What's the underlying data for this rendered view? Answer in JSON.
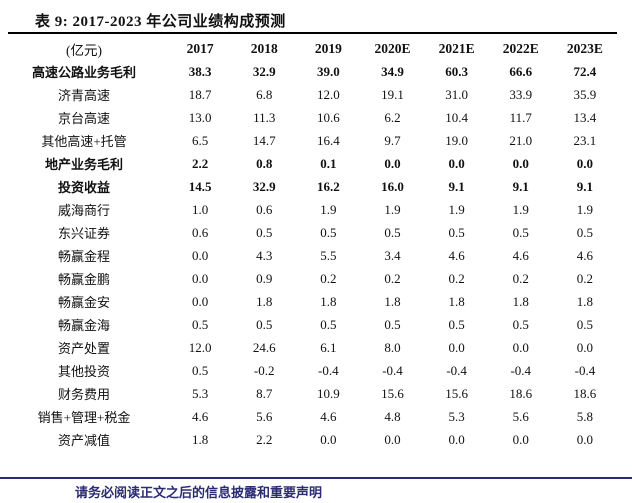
{
  "title": "表 9:  2017-2023 年公司业绩构成预测",
  "colors": {
    "rule_black": "#000000",
    "footer_navy": "#2b2c74",
    "text": "#111111"
  },
  "table": {
    "unit_header": "(亿元)",
    "year_headers": [
      "2017",
      "2018",
      "2019",
      "2020E",
      "2021E",
      "2022E",
      "2023E"
    ],
    "rows": [
      {
        "label": "高速公路业务毛利",
        "bold": true,
        "values": [
          "38.3",
          "32.9",
          "39.0",
          "34.9",
          "60.3",
          "66.6",
          "72.4"
        ]
      },
      {
        "label": "济青高速",
        "bold": false,
        "values": [
          "18.7",
          "6.8",
          "12.0",
          "19.1",
          "31.0",
          "33.9",
          "35.9"
        ]
      },
      {
        "label": "京台高速",
        "bold": false,
        "values": [
          "13.0",
          "11.3",
          "10.6",
          "6.2",
          "10.4",
          "11.7",
          "13.4"
        ]
      },
      {
        "label": "其他高速+托管",
        "bold": false,
        "values": [
          "6.5",
          "14.7",
          "16.4",
          "9.7",
          "19.0",
          "21.0",
          "23.1"
        ]
      },
      {
        "label": "地产业务毛利",
        "bold": true,
        "values": [
          "2.2",
          "0.8",
          "0.1",
          "0.0",
          "0.0",
          "0.0",
          "0.0"
        ]
      },
      {
        "label": "投资收益",
        "bold": true,
        "values": [
          "14.5",
          "32.9",
          "16.2",
          "16.0",
          "9.1",
          "9.1",
          "9.1"
        ]
      },
      {
        "label": "威海商行",
        "bold": false,
        "values": [
          "1.0",
          "0.6",
          "1.9",
          "1.9",
          "1.9",
          "1.9",
          "1.9"
        ]
      },
      {
        "label": "东兴证券",
        "bold": false,
        "values": [
          "0.6",
          "0.5",
          "0.5",
          "0.5",
          "0.5",
          "0.5",
          "0.5"
        ]
      },
      {
        "label": "畅赢金程",
        "bold": false,
        "values": [
          "0.0",
          "4.3",
          "5.5",
          "3.4",
          "4.6",
          "4.6",
          "4.6"
        ]
      },
      {
        "label": "畅赢金鹏",
        "bold": false,
        "values": [
          "0.0",
          "0.9",
          "0.2",
          "0.2",
          "0.2",
          "0.2",
          "0.2"
        ]
      },
      {
        "label": "畅赢金安",
        "bold": false,
        "values": [
          "0.0",
          "1.8",
          "1.8",
          "1.8",
          "1.8",
          "1.8",
          "1.8"
        ]
      },
      {
        "label": "畅赢金海",
        "bold": false,
        "values": [
          "0.5",
          "0.5",
          "0.5",
          "0.5",
          "0.5",
          "0.5",
          "0.5"
        ]
      },
      {
        "label": "资产处置",
        "bold": false,
        "values": [
          "12.0",
          "24.6",
          "6.1",
          "8.0",
          "0.0",
          "0.0",
          "0.0"
        ]
      },
      {
        "label": "其他投资",
        "bold": false,
        "values": [
          "0.5",
          "-0.2",
          "-0.4",
          "-0.4",
          "-0.4",
          "-0.4",
          "-0.4"
        ]
      },
      {
        "label": "财务费用",
        "bold": false,
        "values": [
          "5.3",
          "8.7",
          "10.9",
          "15.6",
          "15.6",
          "18.6",
          "18.6"
        ]
      },
      {
        "label": "销售+管理+税金",
        "bold": false,
        "values": [
          "4.6",
          "5.6",
          "4.6",
          "4.8",
          "5.3",
          "5.6",
          "5.8"
        ]
      },
      {
        "label": "资产减值",
        "bold": false,
        "values": [
          "1.8",
          "2.2",
          "0.0",
          "0.0",
          "0.0",
          "0.0",
          "0.0"
        ]
      }
    ]
  },
  "footer": {
    "disclaimer": "请务必阅读正文之后的信息披露和重要声明"
  }
}
